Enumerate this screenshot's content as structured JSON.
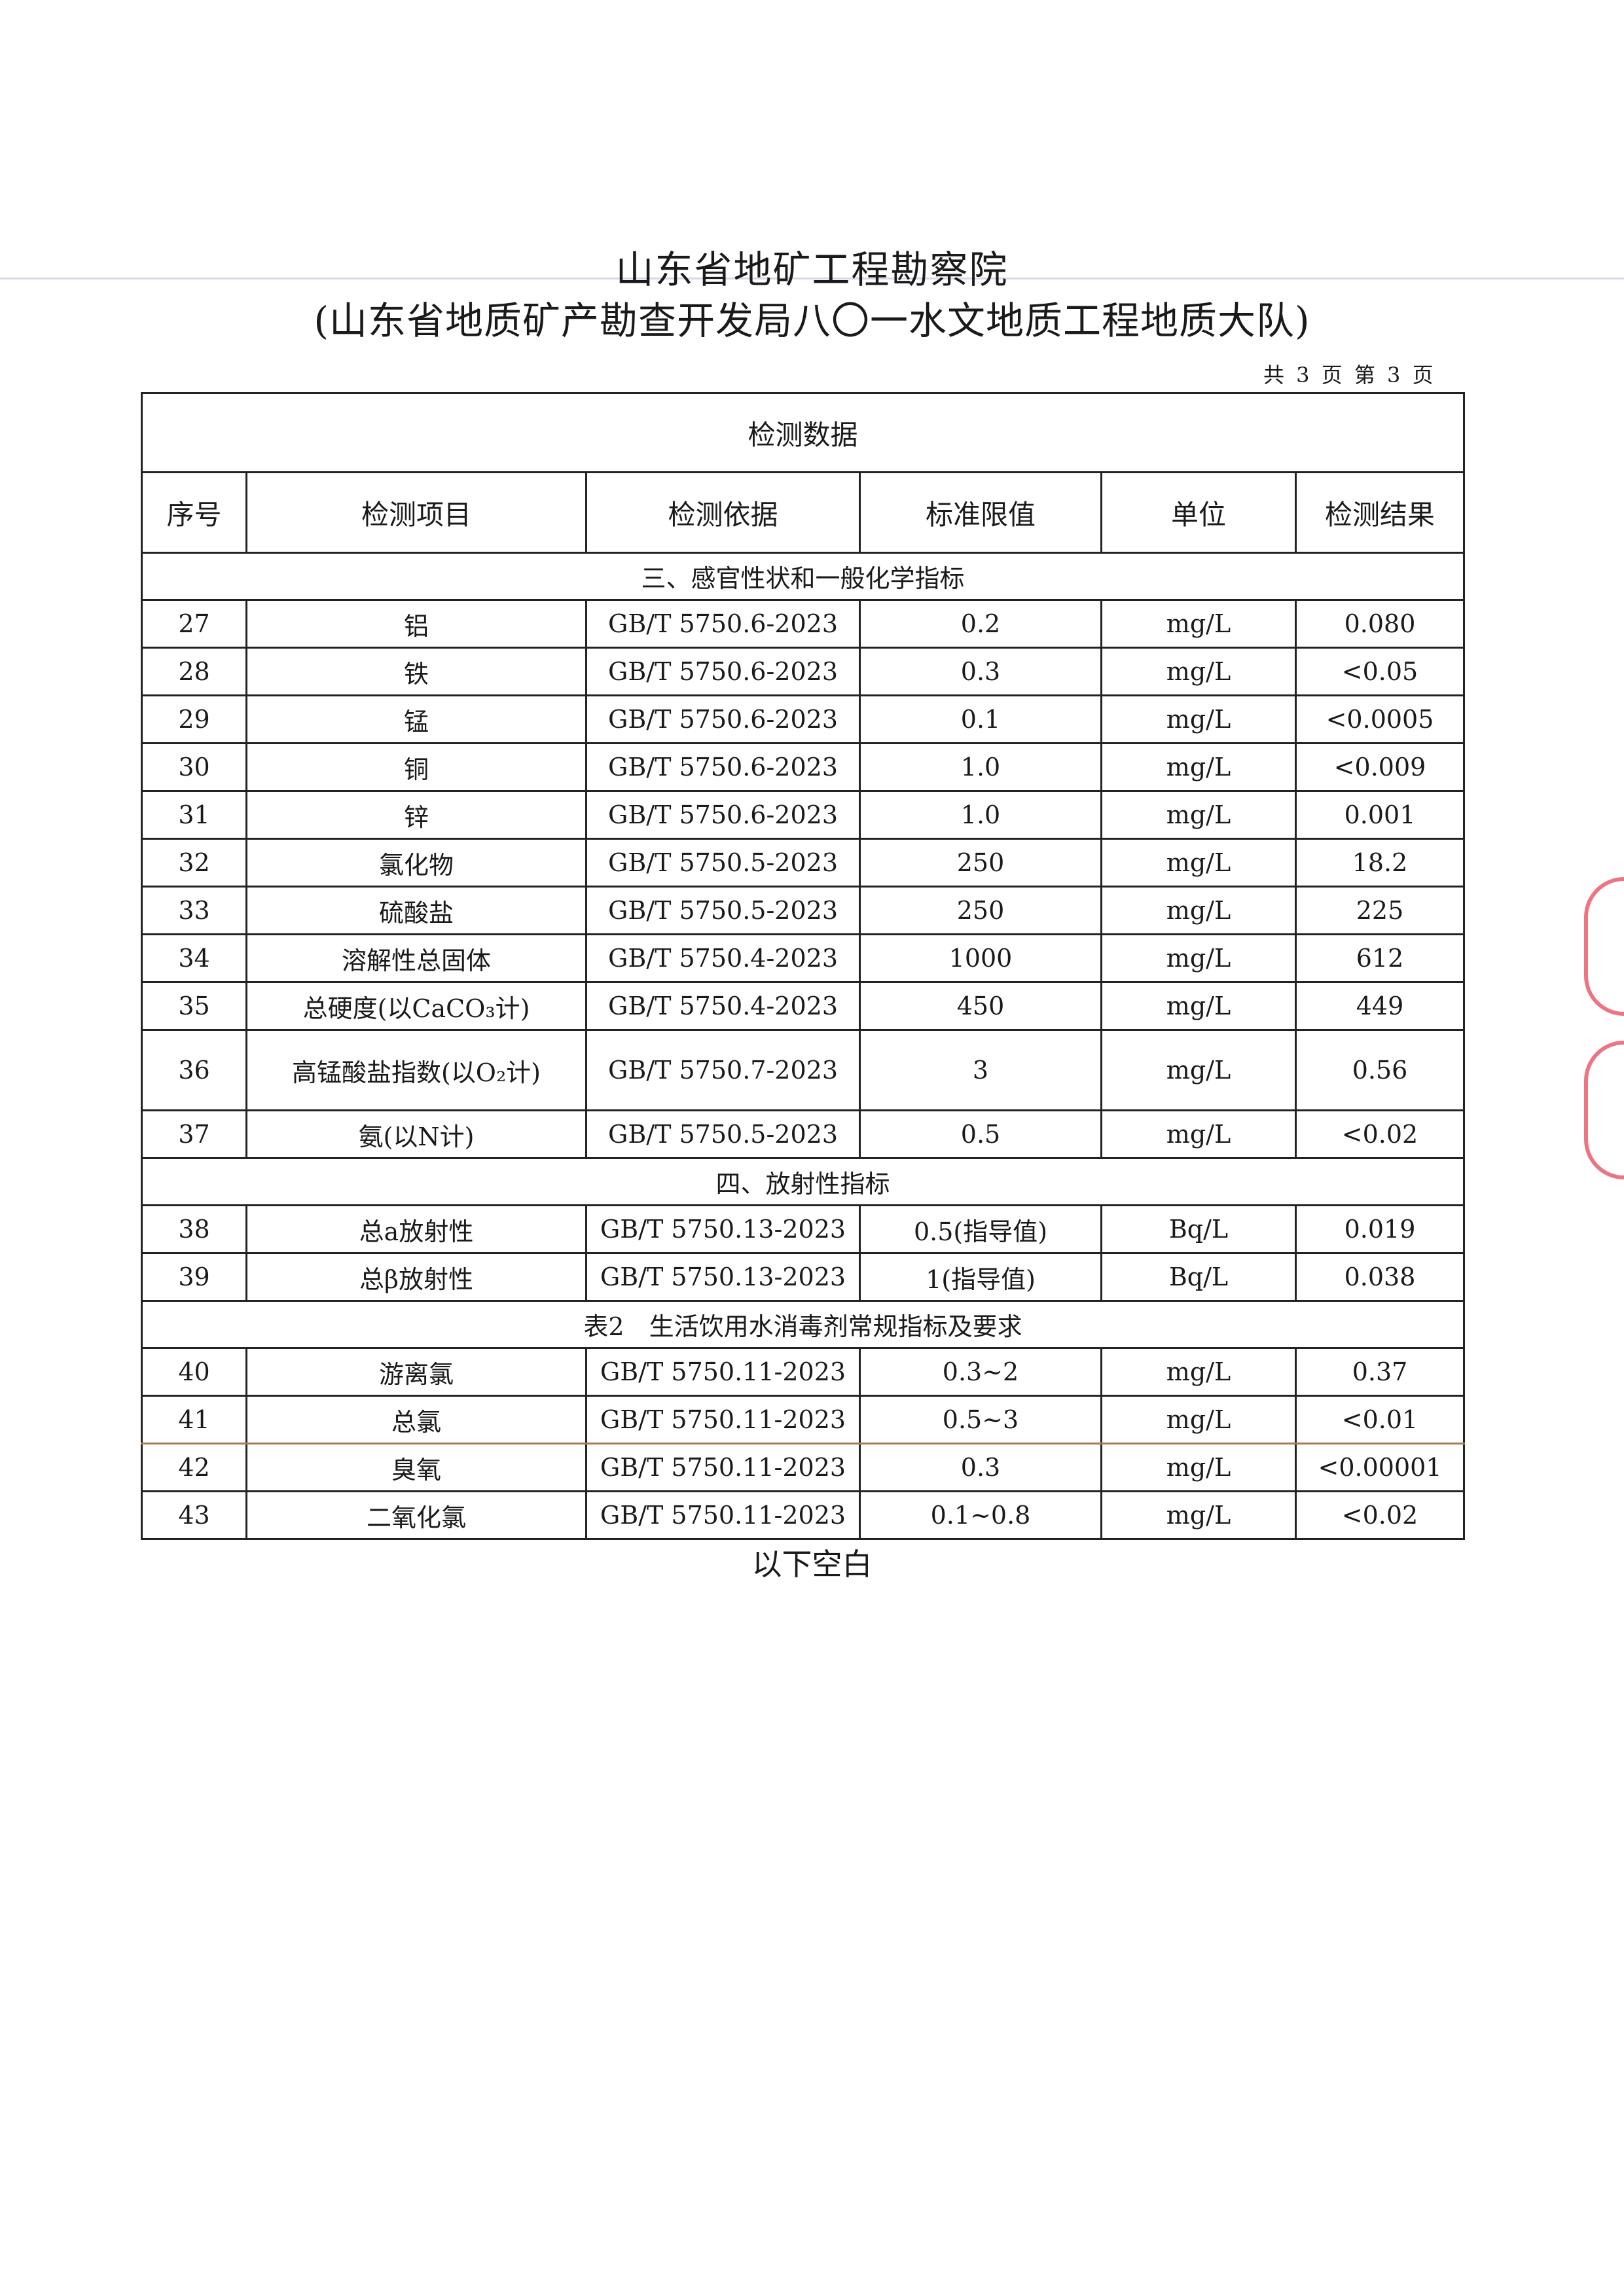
{
  "header": {
    "title": "山东省地矿工程勘察院",
    "subtitle": "(山东省地质矿产勘查开发局八〇一水文地质工程地质大队)",
    "page_info": "共 3 页 第 3 页"
  },
  "table": {
    "caption": "检测数据",
    "columns": [
      "序号",
      "检测项目",
      "检测依据",
      "标准限值",
      "单位",
      "检测结果"
    ],
    "sections": [
      {
        "title": "三、感官性状和一般化学指标",
        "rows": [
          [
            "27",
            "铝",
            "GB/T 5750.6-2023",
            "0.2",
            "mg/L",
            "0.080"
          ],
          [
            "28",
            "铁",
            "GB/T 5750.6-2023",
            "0.3",
            "mg/L",
            "<0.05"
          ],
          [
            "29",
            "锰",
            "GB/T 5750.6-2023",
            "0.1",
            "mg/L",
            "<0.0005"
          ],
          [
            "30",
            "铜",
            "GB/T 5750.6-2023",
            "1.0",
            "mg/L",
            "<0.009"
          ],
          [
            "31",
            "锌",
            "GB/T 5750.6-2023",
            "1.0",
            "mg/L",
            "0.001"
          ],
          [
            "32",
            "氯化物",
            "GB/T 5750.5-2023",
            "250",
            "mg/L",
            "18.2"
          ],
          [
            "33",
            "硫酸盐",
            "GB/T 5750.5-2023",
            "250",
            "mg/L",
            "225"
          ],
          [
            "34",
            "溶解性总固体",
            "GB/T 5750.4-2023",
            "1000",
            "mg/L",
            "612"
          ],
          [
            "35",
            "总硬度(以CaCO₃计)",
            "GB/T 5750.4-2023",
            "450",
            "mg/L",
            "449"
          ],
          [
            "36",
            "高锰酸盐指数(以O₂计)",
            "GB/T 5750.7-2023",
            "3",
            "mg/L",
            "0.56"
          ],
          [
            "37",
            "氨(以N计)",
            "GB/T 5750.5-2023",
            "0.5",
            "mg/L",
            "<0.02"
          ]
        ]
      },
      {
        "title": "四、放射性指标",
        "rows": [
          [
            "38",
            "总a放射性",
            "GB/T 5750.13-2023",
            "0.5(指导值)",
            "Bq/L",
            "0.019"
          ],
          [
            "39",
            "总β放射性",
            "GB/T 5750.13-2023",
            "1(指导值)",
            "Bq/L",
            "0.038"
          ]
        ]
      },
      {
        "title": "表2　生活饮用水消毒剂常规指标及要求",
        "rows": [
          [
            "40",
            "游离氯",
            "GB/T 5750.11-2023",
            "0.3~2",
            "mg/L",
            "0.37"
          ],
          [
            "41",
            "总氯",
            "GB/T 5750.11-2023",
            "0.5~3",
            "mg/L",
            "<0.01"
          ],
          [
            "42",
            "臭氧",
            "GB/T 5750.11-2023",
            "0.3",
            "mg/L",
            "<0.00001"
          ],
          [
            "43",
            "二氧化氯",
            "GB/T 5750.11-2023",
            "0.1~0.8",
            "mg/L",
            "<0.02"
          ]
        ]
      }
    ]
  },
  "footer": {
    "note": "以下空白"
  },
  "colors": {
    "stamp": "#e8485a",
    "text": "#1a1a1a"
  }
}
